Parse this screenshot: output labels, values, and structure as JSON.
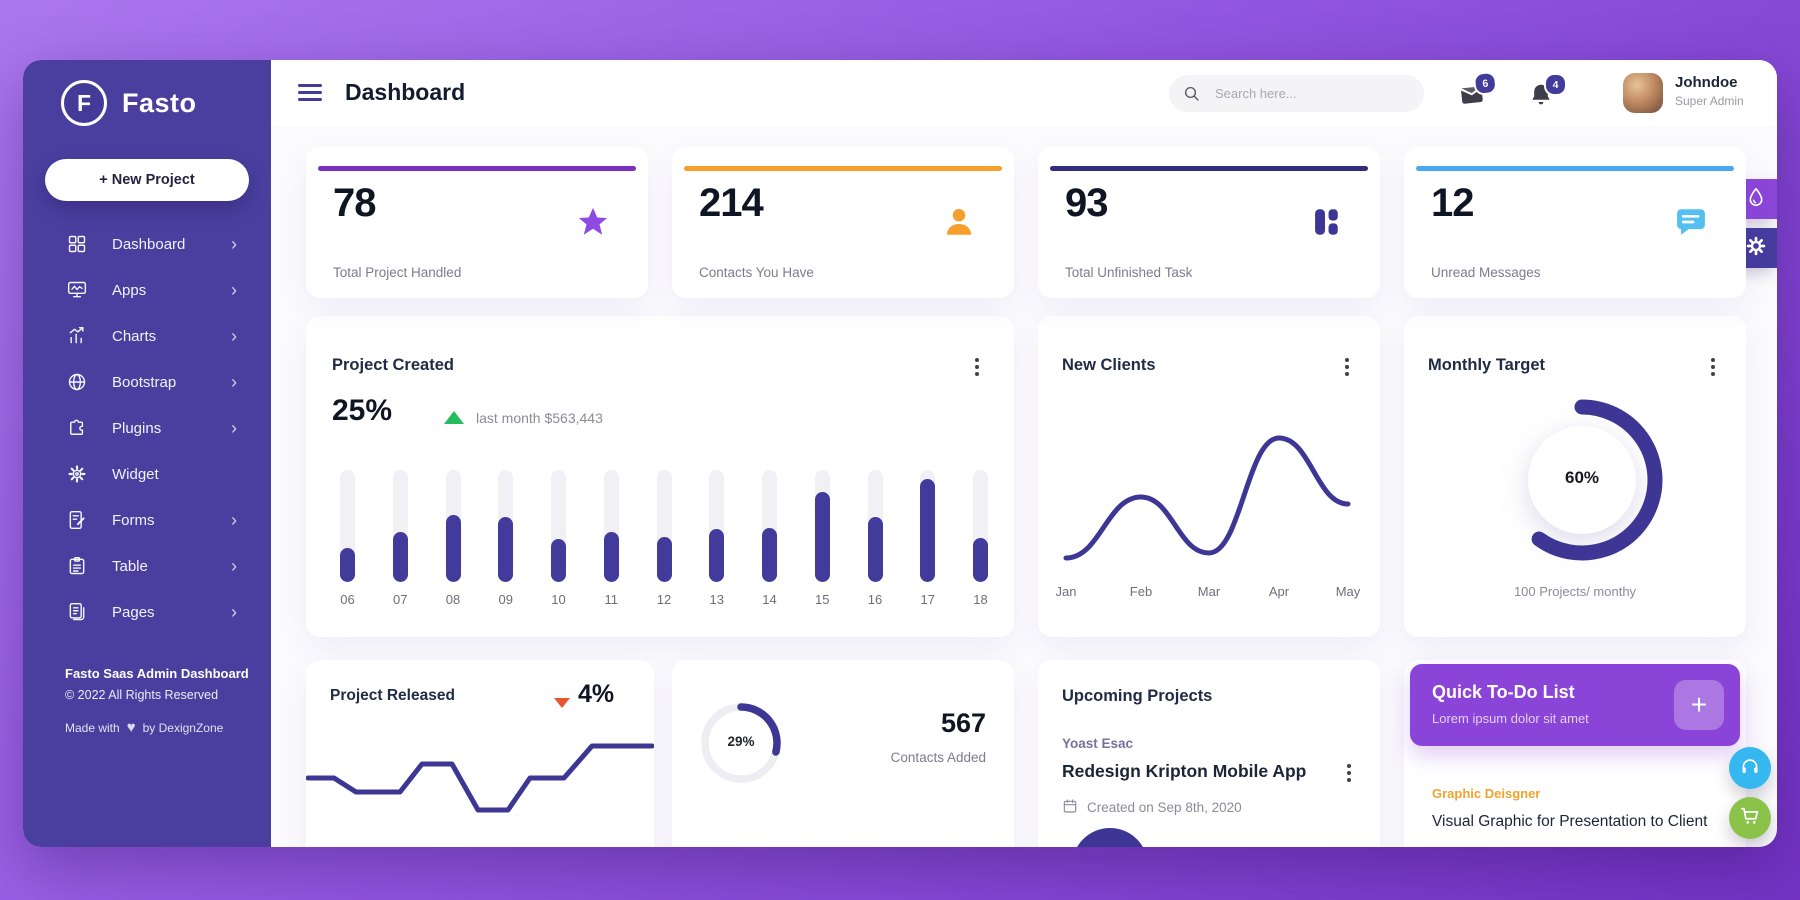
{
  "app": {
    "brand": "Fasto",
    "brand_initial": "F"
  },
  "colors": {
    "sidebar": "#4a3f9f",
    "accent_indigo": "#3d3694",
    "purple": "#8b46d8",
    "orange": "#f5a02c",
    "blue": "#4aa8f0",
    "green_fab": "#8bc34a",
    "trend_up": "#23bd5f",
    "trend_down": "#e8552f",
    "todo_banner": "#8b44d8"
  },
  "sidebar": {
    "new_project_label": "+ New Project",
    "items": [
      {
        "label": "Dashboard",
        "icon": "grid-icon",
        "chevron": true
      },
      {
        "label": "Apps",
        "icon": "monitor-icon",
        "chevron": true
      },
      {
        "label": "Charts",
        "icon": "chart-icon",
        "chevron": true
      },
      {
        "label": "Bootstrap",
        "icon": "globe-icon",
        "chevron": true
      },
      {
        "label": "Plugins",
        "icon": "puzzle-icon",
        "chevron": true
      },
      {
        "label": "Widget",
        "icon": "gear-icon",
        "chevron": false
      },
      {
        "label": "Forms",
        "icon": "form-icon",
        "chevron": true
      },
      {
        "label": "Table",
        "icon": "table-icon",
        "chevron": true
      },
      {
        "label": "Pages",
        "icon": "pages-icon",
        "chevron": true
      }
    ],
    "footer": {
      "line1": "Fasto Saas Admin Dashboard",
      "line2": "© 2022 All Rights Reserved",
      "line3_prefix": "Made with",
      "line3_suffix": "by DexignZone",
      "heart": "♥"
    }
  },
  "header": {
    "title": "Dashboard",
    "search_placeholder": "Search here...",
    "mail_badge": "6",
    "bell_badge": "4",
    "user_name": "Johndoe",
    "user_role": "Super Admin"
  },
  "stats": [
    {
      "value": "78",
      "label": "Total Project Handled",
      "icon": "star-icon",
      "accent": "#7b2fbe",
      "icon_color": "#8e4be4"
    },
    {
      "value": "214",
      "label": "Contacts You Have",
      "icon": "user-icon",
      "accent": "#f5a02c",
      "icon_color": "#f5a02c"
    },
    {
      "value": "93",
      "label": "Total Unfinished Task",
      "icon": "blocks-icon",
      "accent": "#332d7e",
      "icon_color": "#3d3694"
    },
    {
      "value": "12",
      "label": "Unread Messages",
      "icon": "chat-icon",
      "accent": "#4aa8f0",
      "icon_color": "#53c0f0"
    }
  ],
  "project_created": {
    "title": "Project Created",
    "percent": "25%",
    "trend": "up",
    "subtitle": "last month $563,443",
    "chart_data": {
      "type": "bar",
      "categories": [
        "06",
        "07",
        "08",
        "09",
        "10",
        "11",
        "12",
        "13",
        "14",
        "15",
        "16",
        "17",
        "18"
      ],
      "values_pct": [
        30,
        45,
        60,
        58,
        38,
        45,
        40,
        47,
        48,
        80,
        58,
        92,
        39
      ],
      "bar_color": "#433b9c",
      "track_color": "#f1f1f5"
    }
  },
  "new_clients": {
    "title": "New Clients",
    "chart_data": {
      "type": "line",
      "categories": [
        "Jan",
        "Feb",
        "Mar",
        "Apr",
        "May"
      ],
      "points": [
        [
          28,
          242
        ],
        [
          103,
          181
        ],
        [
          171,
          237
        ],
        [
          241,
          122
        ],
        [
          310,
          188
        ]
      ],
      "line_color": "#3d3694"
    }
  },
  "monthly_target": {
    "title": "Monthly Target",
    "percent": 60,
    "percent_label": "60%",
    "caption": "100 Projects/ monthy",
    "chart_data": {
      "type": "donut",
      "value_pct": 60,
      "color": "#3d3694"
    }
  },
  "project_released": {
    "title": "Project Released",
    "percent": "4%",
    "trend": "down",
    "chart_data": {
      "type": "step-line",
      "points": [
        [
          2,
          48
        ],
        [
          28,
          48
        ],
        [
          50,
          62
        ],
        [
          94,
          62
        ],
        [
          116,
          34
        ],
        [
          146,
          34
        ],
        [
          172,
          80
        ],
        [
          202,
          80
        ],
        [
          224,
          48
        ],
        [
          258,
          48
        ],
        [
          286,
          16
        ],
        [
          346,
          16
        ]
      ],
      "line_color": "#3d3694"
    }
  },
  "contacts_added": {
    "value": "567",
    "label": "Contacts Added",
    "donut_percent": 29,
    "donut_label": "29%",
    "chart_data": {
      "type": "donut",
      "value_pct": 29,
      "color": "#3d3694",
      "track_color": "#ededf2"
    }
  },
  "upcoming_projects": {
    "title": "Upcoming Projects",
    "client": "Yoast Esac",
    "project": "Redesign Kripton Mobile App",
    "created": "Created on Sep 8th, 2020"
  },
  "todo": {
    "title": "Quick To-Do List",
    "subtitle": "Lorem ipsum dolor sit amet",
    "add_label": "+"
  },
  "task_preview": {
    "role": "Graphic Deisgner",
    "task": "Visual Graphic for Presentation to Client"
  }
}
